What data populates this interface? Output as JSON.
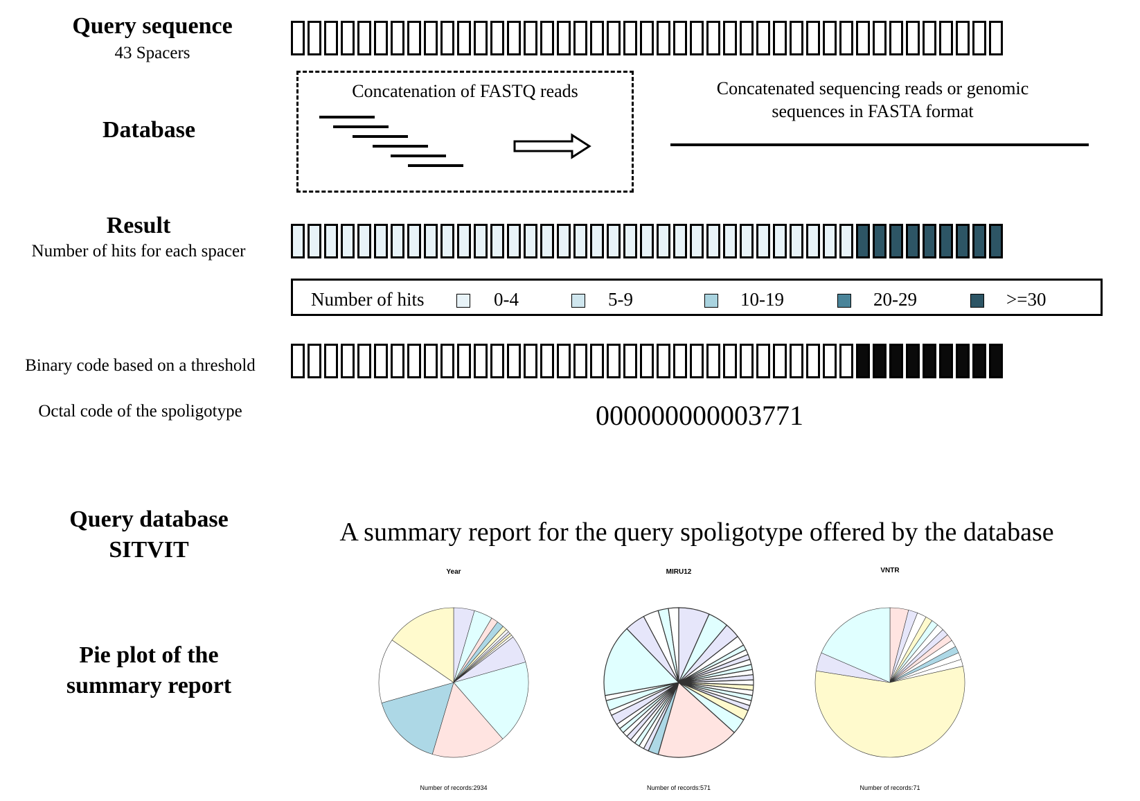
{
  "labels": {
    "query_sequence": "Query sequence",
    "spacers": "43 Spacers",
    "database": "Database",
    "result": "Result",
    "hits_per_spacer": "Number of hits for each spacer",
    "binary_code": "Binary code based on a threshold",
    "octal_code_label": "Octal code of the spoligotype",
    "query_db_line1": "Query database",
    "query_db_line2": "SITVIT",
    "pie_line1": "Pie plot of the",
    "pie_line2": "summary report"
  },
  "database": {
    "fastq_caption": "Concatenation of FASTQ reads",
    "fasta_line1": "Concatenated sequencing reads or genomic",
    "fasta_line2": "sequences in FASTA format"
  },
  "spacers": {
    "count": 43,
    "result_levels": [
      0,
      0,
      0,
      0,
      0,
      0,
      0,
      0,
      0,
      0,
      0,
      0,
      0,
      0,
      0,
      0,
      0,
      0,
      0,
      0,
      0,
      0,
      0,
      0,
      0,
      0,
      0,
      0,
      0,
      0,
      0,
      0,
      0,
      0,
      4,
      4,
      4,
      4,
      4,
      4,
      4,
      4,
      4
    ],
    "binary": [
      0,
      0,
      0,
      0,
      0,
      0,
      0,
      0,
      0,
      0,
      0,
      0,
      0,
      0,
      0,
      0,
      0,
      0,
      0,
      0,
      0,
      0,
      0,
      0,
      0,
      0,
      0,
      0,
      0,
      0,
      0,
      0,
      0,
      0,
      1,
      1,
      1,
      1,
      1,
      1,
      1,
      1,
      1
    ]
  },
  "legend": {
    "title": "Number of hits",
    "items": [
      {
        "label": "0-4",
        "color": "#e8f3f8"
      },
      {
        "label": "5-9",
        "color": "#cfe6ee"
      },
      {
        "label": "10-19",
        "color": "#a9d3df"
      },
      {
        "label": "20-29",
        "color": "#4a8499"
      },
      {
        "label": ">=30",
        "color": "#2d5565"
      }
    ]
  },
  "octal_code": "000000000003771",
  "summary_title": "A summary report for the query spoligotype offered by the database",
  "pies": [
    {
      "title": "Year",
      "footer": "Number of records:2934",
      "slices": [
        {
          "value": 4.5,
          "color": "#e6e6fa"
        },
        {
          "value": 4,
          "color": "#e0ffff"
        },
        {
          "value": 1.5,
          "color": "#ffe4e1"
        },
        {
          "value": 1.5,
          "color": "#add8e6"
        },
        {
          "value": 1,
          "color": "#fffacd"
        },
        {
          "value": 0.6,
          "color": "#ffffff"
        },
        {
          "value": 0.5,
          "color": "#e6e6fa"
        },
        {
          "value": 0.5,
          "color": "#fffacd"
        },
        {
          "value": 0.5,
          "color": "#ffffff"
        },
        {
          "value": 6,
          "color": "#e6e6fa"
        },
        {
          "value": 18,
          "color": "#e0ffff"
        },
        {
          "value": 16,
          "color": "#ffe4e1"
        },
        {
          "value": 16,
          "color": "#add8e6"
        },
        {
          "value": 14,
          "color": "#ffffff"
        },
        {
          "value": 15.4,
          "color": "#fffacd"
        }
      ]
    },
    {
      "title": "MIRU12",
      "footer": "Number of records:571",
      "slices": [
        {
          "value": 6,
          "color": "#e6e6fa"
        },
        {
          "value": 4,
          "color": "#e0ffff"
        },
        {
          "value": 3,
          "color": "#e6e6fa"
        },
        {
          "value": 2,
          "color": "#ffffff"
        },
        {
          "value": 1,
          "color": "#e0ffff"
        },
        {
          "value": 1,
          "color": "#ffffff"
        },
        {
          "value": 1,
          "color": "#e6e6fa"
        },
        {
          "value": 1,
          "color": "#ffffff"
        },
        {
          "value": 1,
          "color": "#e0ffff"
        },
        {
          "value": 1,
          "color": "#ffffff"
        },
        {
          "value": 1,
          "color": "#e6e6fa"
        },
        {
          "value": 1,
          "color": "#ffffff"
        },
        {
          "value": 1,
          "color": "#fffacd"
        },
        {
          "value": 1,
          "color": "#ffffff"
        },
        {
          "value": 1,
          "color": "#e0ffff"
        },
        {
          "value": 1,
          "color": "#ffffff"
        },
        {
          "value": 1,
          "color": "#e6e6fa"
        },
        {
          "value": 2,
          "color": "#fffacd"
        },
        {
          "value": 3,
          "color": "#e0ffff"
        },
        {
          "value": 16,
          "color": "#ffe4e1"
        },
        {
          "value": 2,
          "color": "#add8e6"
        },
        {
          "value": 1,
          "color": "#e6e6fa"
        },
        {
          "value": 1,
          "color": "#ffffff"
        },
        {
          "value": 1,
          "color": "#e0ffff"
        },
        {
          "value": 1,
          "color": "#ffffff"
        },
        {
          "value": 1,
          "color": "#e6e6fa"
        },
        {
          "value": 1,
          "color": "#ffffff"
        },
        {
          "value": 1,
          "color": "#e0ffff"
        },
        {
          "value": 1,
          "color": "#ffffff"
        },
        {
          "value": 2,
          "color": "#e6e6fa"
        },
        {
          "value": 1,
          "color": "#ffffff"
        },
        {
          "value": 2,
          "color": "#e0ffff"
        },
        {
          "value": 1,
          "color": "#ffffff"
        },
        {
          "value": 14,
          "color": "#e0ffff"
        },
        {
          "value": 4,
          "color": "#e6e6fa"
        },
        {
          "value": 3,
          "color": "#ffffff"
        },
        {
          "value": 2,
          "color": "#e0ffff"
        },
        {
          "value": 2,
          "color": "#ffffff"
        }
      ]
    },
    {
      "title": "VNTR",
      "footer": "Number of records:71",
      "slices": [
        {
          "value": 4,
          "color": "#ffe4e1"
        },
        {
          "value": 2,
          "color": "#e6e6fa"
        },
        {
          "value": 2,
          "color": "#ffffff"
        },
        {
          "value": 1.5,
          "color": "#fffacd"
        },
        {
          "value": 1.5,
          "color": "#e0ffff"
        },
        {
          "value": 1.5,
          "color": "#ffffff"
        },
        {
          "value": 1.5,
          "color": "#e6e6fa"
        },
        {
          "value": 1.5,
          "color": "#ffe4e1"
        },
        {
          "value": 1.5,
          "color": "#ffffff"
        },
        {
          "value": 1.5,
          "color": "#add8e6"
        },
        {
          "value": 1.5,
          "color": "#ffffff"
        },
        {
          "value": 1.5,
          "color": "#ffffff"
        },
        {
          "value": 56,
          "color": "#fffacd"
        },
        {
          "value": 4,
          "color": "#e6e6fa"
        },
        {
          "value": 18.5,
          "color": "#e0ffff"
        }
      ]
    }
  ]
}
